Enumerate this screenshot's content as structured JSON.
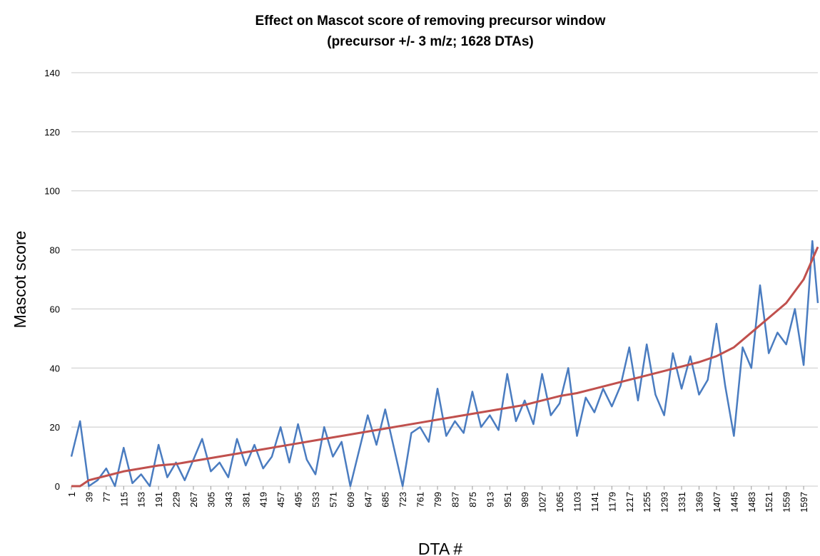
{
  "chart_data": {
    "type": "line",
    "title": [
      "Effect  on Mascot score of removing precursor window",
      "(precursor +/- 3 m/z; 1628 DTAs)"
    ],
    "x_label": "DTA #",
    "y_label": "Mascot score",
    "xlim": [
      1,
      1628
    ],
    "ylim": [
      0,
      140
    ],
    "yticks": [
      0,
      20,
      40,
      60,
      80,
      100,
      120,
      140
    ],
    "xticks": [
      1,
      39,
      77,
      115,
      153,
      191,
      229,
      267,
      305,
      343,
      381,
      419,
      457,
      495,
      533,
      571,
      609,
      647,
      685,
      723,
      761,
      799,
      837,
      875,
      913,
      951,
      989,
      1027,
      1065,
      1103,
      1141,
      1179,
      1217,
      1255,
      1293,
      1331,
      1369,
      1407,
      1445,
      1483,
      1521,
      1559,
      1597
    ],
    "grid": true,
    "series": [
      {
        "color": "#4a7cc0",
        "x": [
          1,
          20,
          39,
          58,
          77,
          96,
          115,
          134,
          153,
          172,
          191,
          210,
          229,
          248,
          267,
          286,
          305,
          324,
          343,
          362,
          381,
          400,
          419,
          438,
          457,
          476,
          495,
          514,
          533,
          552,
          571,
          590,
          609,
          628,
          647,
          666,
          685,
          704,
          723,
          742,
          761,
          780,
          799,
          818,
          837,
          856,
          875,
          894,
          913,
          932,
          951,
          970,
          989,
          1008,
          1027,
          1046,
          1065,
          1084,
          1103,
          1122,
          1141,
          1160,
          1179,
          1198,
          1217,
          1236,
          1255,
          1274,
          1293,
          1312,
          1331,
          1350,
          1369,
          1388,
          1407,
          1426,
          1445,
          1464,
          1483,
          1502,
          1521,
          1540,
          1559,
          1578,
          1597,
          1616,
          1628
        ],
        "values": [
          10,
          22,
          0,
          2,
          6,
          0,
          13,
          1,
          4,
          0,
          14,
          3,
          8,
          2,
          9,
          16,
          5,
          8,
          3,
          16,
          7,
          14,
          6,
          10,
          20,
          8,
          21,
          9,
          4,
          20,
          10,
          15,
          0,
          12,
          24,
          14,
          26,
          13,
          0,
          18,
          20,
          15,
          33,
          17,
          22,
          18,
          32,
          20,
          24,
          19,
          38,
          22,
          29,
          21,
          38,
          24,
          28,
          40,
          17,
          30,
          25,
          33,
          27,
          34,
          47,
          29,
          48,
          31,
          24,
          45,
          33,
          44,
          31,
          36,
          55,
          34,
          17,
          47,
          40,
          68,
          45,
          52,
          48,
          60,
          41,
          83,
          62
        ]
      },
      {
        "color": "#c0504d",
        "x": [
          1,
          20,
          39,
          77,
          115,
          153,
          191,
          229,
          267,
          305,
          343,
          381,
          419,
          457,
          495,
          533,
          571,
          609,
          647,
          685,
          723,
          761,
          799,
          837,
          875,
          913,
          951,
          989,
          1027,
          1065,
          1103,
          1141,
          1179,
          1217,
          1255,
          1293,
          1331,
          1369,
          1407,
          1445,
          1483,
          1521,
          1559,
          1597,
          1628
        ],
        "values": [
          0,
          0,
          2,
          3.5,
          5,
          6,
          7,
          7.5,
          8.5,
          9.5,
          10.5,
          11.5,
          12.5,
          13.5,
          14.5,
          15.5,
          16.5,
          17.5,
          18.5,
          19.5,
          20.5,
          21.5,
          22.5,
          23.5,
          24.5,
          25.5,
          26.5,
          27.5,
          29,
          30.5,
          31.5,
          33,
          34.5,
          36,
          37.5,
          39,
          40.5,
          42,
          44,
          47,
          52,
          57,
          62,
          70,
          81
        ]
      }
    ]
  }
}
